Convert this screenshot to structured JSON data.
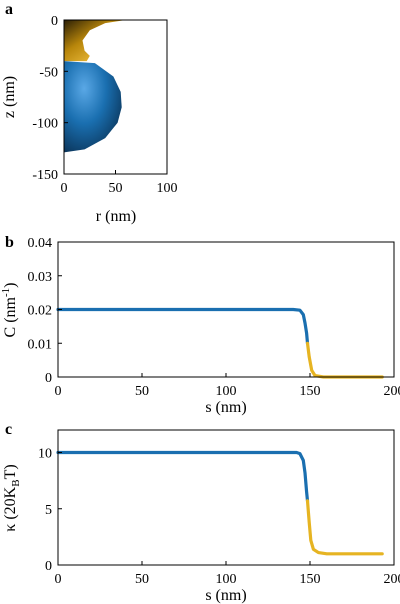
{
  "chart_data": [
    {
      "panel_label": "a",
      "type": "area",
      "xlabel": "r (nm)",
      "ylabel": "z (nm)",
      "xlim": [
        0,
        100
      ],
      "ylim": [
        -150,
        0
      ],
      "xticks": [
        "0",
        "50",
        "100"
      ],
      "yticks": [
        "0",
        "-50",
        "-100",
        "-150"
      ],
      "series": [
        {
          "color": "#e6b422",
          "points": [
            [
              0,
              0
            ],
            [
              60,
              0
            ],
            [
              40,
              -3
            ],
            [
              25,
              -10
            ],
            [
              18,
              -20
            ],
            [
              20,
              -30
            ],
            [
              25,
              -35
            ],
            [
              22,
              -40
            ],
            [
              0,
              -40
            ]
          ]
        },
        {
          "color": "#1a6fb0",
          "points": [
            [
              0,
              -40
            ],
            [
              30,
              -42
            ],
            [
              48,
              -55
            ],
            [
              55,
              -70
            ],
            [
              56,
              -85
            ],
            [
              52,
              -100
            ],
            [
              40,
              -115
            ],
            [
              20,
              -126
            ],
            [
              0,
              -129
            ]
          ]
        }
      ]
    },
    {
      "panel_label": "b",
      "type": "line",
      "xlabel": "s (nm)",
      "ylabel": "C (nm",
      "ylabel_sup": "-1",
      "ylabel_end": ")",
      "xlim": [
        0,
        200
      ],
      "ylim": [
        0,
        0.04
      ],
      "xticks": [
        "0",
        "50",
        "100",
        "150",
        "200"
      ],
      "yticks": [
        "0",
        "0.01",
        "0.02",
        "0.03",
        "0.04"
      ],
      "series": [
        {
          "color": "#1a6fb0",
          "points": [
            [
              0,
              0.02
            ],
            [
              140,
              0.02
            ],
            [
              144,
              0.0198
            ],
            [
              146,
              0.0185
            ],
            [
              147,
              0.016
            ],
            [
              148,
              0.013
            ],
            [
              148.5,
              0.01
            ]
          ]
        },
        {
          "color": "#e6b422",
          "points": [
            [
              148.5,
              0.01
            ],
            [
              149.5,
              0.006
            ],
            [
              151,
              0.002
            ],
            [
              153,
              0.0004
            ],
            [
              158,
              0
            ],
            [
              193,
              0
            ]
          ]
        }
      ]
    },
    {
      "panel_label": "c",
      "type": "line",
      "xlabel": "s (nm)",
      "ylabel": "κ (20K",
      "ylabel_sub": "B",
      "ylabel_end": "T)",
      "xlim": [
        0,
        200
      ],
      "ylim": [
        0,
        12
      ],
      "xticks": [
        "0",
        "50",
        "100",
        "150",
        "200"
      ],
      "yticks": [
        "0",
        "5",
        "10"
      ],
      "series": [
        {
          "color": "#1a6fb0",
          "points": [
            [
              0,
              10
            ],
            [
              142,
              10
            ],
            [
              144,
              9.9
            ],
            [
              146,
              9.3
            ],
            [
              147,
              8.2
            ],
            [
              148,
              6.5
            ],
            [
              148.5,
              5.7
            ]
          ]
        },
        {
          "color": "#e6b422",
          "points": [
            [
              148.5,
              5.7
            ],
            [
              149.5,
              3.8
            ],
            [
              150.5,
              2.2
            ],
            [
              152,
              1.4
            ],
            [
              155,
              1.1
            ],
            [
              160,
              1.0
            ],
            [
              193,
              1.0
            ]
          ]
        }
      ]
    }
  ]
}
